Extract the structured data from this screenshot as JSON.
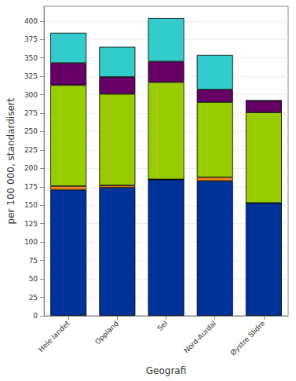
{
  "chart_data": {
    "type": "bar",
    "stacked": true,
    "grid": true,
    "x_label": "Geografi",
    "y_label": "per 100 000, standardisert",
    "categories": [
      "Hele landet",
      "Oppland",
      "Sel",
      "Nord-Aurdal",
      "Øystre Slidre"
    ],
    "series": [
      {
        "color": "#003399",
        "values": [
          171,
          174,
          185,
          183,
          153
        ]
      },
      {
        "color": "#f28c1e",
        "values": [
          5,
          3,
          0,
          5,
          0
        ]
      },
      {
        "color": "#99cc00",
        "values": [
          137,
          124,
          132,
          102,
          123
        ]
      },
      {
        "color": "#660066",
        "values": [
          30,
          23,
          28,
          17,
          16
        ]
      },
      {
        "color": "#33cccc",
        "values": [
          41,
          41,
          59,
          47,
          0
        ]
      }
    ],
    "ylim": [
      0,
      420
    ],
    "yticks": [
      0,
      25,
      50,
      75,
      100,
      125,
      150,
      175,
      200,
      225,
      250,
      275,
      300,
      325,
      350,
      375,
      400
    ]
  }
}
